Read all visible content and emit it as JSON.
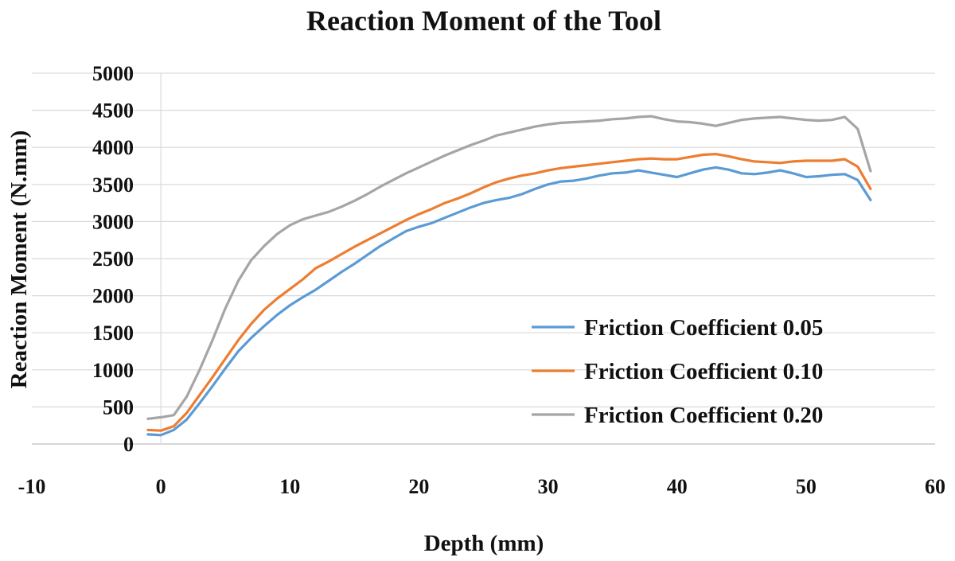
{
  "chart_data": {
    "type": "line",
    "title": "Reaction Moment of the Tool",
    "xlabel": "Depth (mm)",
    "ylabel": "Reaction Moment (N.mm)",
    "xlim": [
      -10,
      60
    ],
    "ylim": [
      0,
      5000
    ],
    "x_ticks": [
      "-10",
      "0",
      "10",
      "20",
      "30",
      "40",
      "50",
      "60"
    ],
    "y_ticks": [
      "0",
      "500",
      "1000",
      "1500",
      "2000",
      "2500",
      "3000",
      "3500",
      "4000",
      "4500",
      "5000"
    ],
    "grid": "horizontal",
    "legend_position": "lower-right",
    "series": [
      {
        "name": "Friction Coefficient 0.05",
        "color": "#5b9bd5",
        "points": [
          [
            -1,
            130
          ],
          [
            0,
            120
          ],
          [
            1,
            190
          ],
          [
            2,
            330
          ],
          [
            3,
            550
          ],
          [
            4,
            780
          ],
          [
            5,
            1020
          ],
          [
            6,
            1250
          ],
          [
            7,
            1430
          ],
          [
            8,
            1590
          ],
          [
            9,
            1740
          ],
          [
            10,
            1870
          ],
          [
            11,
            1980
          ],
          [
            12,
            2080
          ],
          [
            13,
            2200
          ],
          [
            14,
            2320
          ],
          [
            15,
            2430
          ],
          [
            16,
            2550
          ],
          [
            17,
            2670
          ],
          [
            18,
            2770
          ],
          [
            19,
            2870
          ],
          [
            20,
            2930
          ],
          [
            21,
            2980
          ],
          [
            22,
            3050
          ],
          [
            23,
            3120
          ],
          [
            24,
            3190
          ],
          [
            25,
            3250
          ],
          [
            26,
            3290
          ],
          [
            27,
            3320
          ],
          [
            28,
            3370
          ],
          [
            29,
            3440
          ],
          [
            30,
            3500
          ],
          [
            31,
            3540
          ],
          [
            32,
            3550
          ],
          [
            33,
            3580
          ],
          [
            34,
            3620
          ],
          [
            35,
            3650
          ],
          [
            36,
            3660
          ],
          [
            37,
            3690
          ],
          [
            38,
            3660
          ],
          [
            39,
            3630
          ],
          [
            40,
            3600
          ],
          [
            41,
            3650
          ],
          [
            42,
            3700
          ],
          [
            43,
            3730
          ],
          [
            44,
            3700
          ],
          [
            45,
            3650
          ],
          [
            46,
            3640
          ],
          [
            47,
            3660
          ],
          [
            48,
            3690
          ],
          [
            49,
            3650
          ],
          [
            50,
            3600
          ],
          [
            51,
            3610
          ],
          [
            52,
            3630
          ],
          [
            53,
            3640
          ],
          [
            54,
            3560
          ],
          [
            55,
            3290
          ]
        ]
      },
      {
        "name": "Friction Coefficient 0.10",
        "color": "#ed7d31",
        "points": [
          [
            -1,
            190
          ],
          [
            0,
            180
          ],
          [
            1,
            240
          ],
          [
            2,
            420
          ],
          [
            3,
            660
          ],
          [
            4,
            900
          ],
          [
            5,
            1150
          ],
          [
            6,
            1400
          ],
          [
            7,
            1620
          ],
          [
            8,
            1810
          ],
          [
            9,
            1960
          ],
          [
            10,
            2090
          ],
          [
            11,
            2220
          ],
          [
            12,
            2370
          ],
          [
            13,
            2460
          ],
          [
            14,
            2560
          ],
          [
            15,
            2660
          ],
          [
            16,
            2750
          ],
          [
            17,
            2840
          ],
          [
            18,
            2930
          ],
          [
            19,
            3020
          ],
          [
            20,
            3100
          ],
          [
            21,
            3170
          ],
          [
            22,
            3250
          ],
          [
            23,
            3310
          ],
          [
            24,
            3380
          ],
          [
            25,
            3460
          ],
          [
            26,
            3530
          ],
          [
            27,
            3580
          ],
          [
            28,
            3620
          ],
          [
            29,
            3650
          ],
          [
            30,
            3690
          ],
          [
            31,
            3720
          ],
          [
            32,
            3740
          ],
          [
            33,
            3760
          ],
          [
            34,
            3780
          ],
          [
            35,
            3800
          ],
          [
            36,
            3820
          ],
          [
            37,
            3840
          ],
          [
            38,
            3850
          ],
          [
            39,
            3840
          ],
          [
            40,
            3840
          ],
          [
            41,
            3870
          ],
          [
            42,
            3900
          ],
          [
            43,
            3910
          ],
          [
            44,
            3880
          ],
          [
            45,
            3840
          ],
          [
            46,
            3810
          ],
          [
            47,
            3800
          ],
          [
            48,
            3790
          ],
          [
            49,
            3810
          ],
          [
            50,
            3820
          ],
          [
            51,
            3820
          ],
          [
            52,
            3820
          ],
          [
            53,
            3840
          ],
          [
            54,
            3740
          ],
          [
            55,
            3440
          ]
        ]
      },
      {
        "name": "Friction Coefficient 0.20",
        "color": "#a5a5a5",
        "points": [
          [
            -1,
            340
          ],
          [
            0,
            360
          ],
          [
            1,
            390
          ],
          [
            2,
            640
          ],
          [
            3,
            1000
          ],
          [
            4,
            1400
          ],
          [
            5,
            1830
          ],
          [
            6,
            2200
          ],
          [
            7,
            2480
          ],
          [
            8,
            2670
          ],
          [
            9,
            2830
          ],
          [
            10,
            2950
          ],
          [
            11,
            3030
          ],
          [
            12,
            3080
          ],
          [
            13,
            3130
          ],
          [
            14,
            3200
          ],
          [
            15,
            3280
          ],
          [
            16,
            3370
          ],
          [
            17,
            3470
          ],
          [
            18,
            3560
          ],
          [
            19,
            3650
          ],
          [
            20,
            3730
          ],
          [
            21,
            3810
          ],
          [
            22,
            3890
          ],
          [
            23,
            3960
          ],
          [
            24,
            4030
          ],
          [
            25,
            4090
          ],
          [
            26,
            4160
          ],
          [
            27,
            4200
          ],
          [
            28,
            4240
          ],
          [
            29,
            4280
          ],
          [
            30,
            4310
          ],
          [
            31,
            4330
          ],
          [
            32,
            4340
          ],
          [
            33,
            4350
          ],
          [
            34,
            4360
          ],
          [
            35,
            4380
          ],
          [
            36,
            4390
          ],
          [
            37,
            4410
          ],
          [
            38,
            4420
          ],
          [
            39,
            4380
          ],
          [
            40,
            4350
          ],
          [
            41,
            4340
          ],
          [
            42,
            4320
          ],
          [
            43,
            4290
          ],
          [
            44,
            4330
          ],
          [
            45,
            4370
          ],
          [
            46,
            4390
          ],
          [
            47,
            4400
          ],
          [
            48,
            4410
          ],
          [
            49,
            4390
          ],
          [
            50,
            4370
          ],
          [
            51,
            4360
          ],
          [
            52,
            4370
          ],
          [
            53,
            4410
          ],
          [
            54,
            4250
          ],
          [
            55,
            3680
          ]
        ]
      }
    ]
  }
}
